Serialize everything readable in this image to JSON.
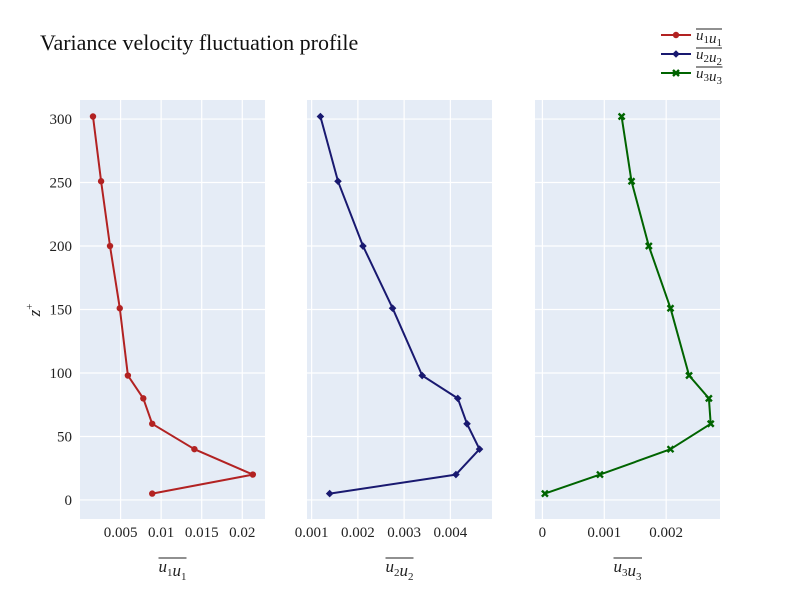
{
  "chart_data": {
    "title": "Variance velocity fluctuation profile",
    "type": "line",
    "shared_y": {
      "label": "z",
      "label_superscript": "+",
      "ylim": [
        -15,
        315
      ],
      "ticks": [
        0,
        50,
        100,
        150,
        200,
        250,
        300
      ]
    },
    "panels": [
      {
        "name": "u1u1",
        "xlabel": "u",
        "xlabel_subscripts": [
          "1",
          "1"
        ],
        "xlim": [
          0.0,
          0.0228
        ],
        "xticks": [
          0.005,
          0.01,
          0.015,
          0.02
        ],
        "xtick_labels": [
          "0.005",
          "0.01",
          "0.015",
          "0.02"
        ],
        "color": "#b22222",
        "marker": "circle",
        "series": {
          "name": "u1u1",
          "points": [
            {
              "x": 0.0089,
              "y": 5
            },
            {
              "x": 0.0213,
              "y": 20
            },
            {
              "x": 0.0141,
              "y": 40
            },
            {
              "x": 0.0089,
              "y": 60
            },
            {
              "x": 0.0078,
              "y": 80
            },
            {
              "x": 0.0059,
              "y": 98
            },
            {
              "x": 0.0049,
              "y": 151
            },
            {
              "x": 0.0037,
              "y": 200
            },
            {
              "x": 0.0026,
              "y": 251
            },
            {
              "x": 0.0016,
              "y": 302
            }
          ]
        }
      },
      {
        "name": "u2u2",
        "xlabel": "u",
        "xlabel_subscripts": [
          "2",
          "2"
        ],
        "xlim": [
          0.0009,
          0.0049
        ],
        "xticks": [
          0.001,
          0.002,
          0.003,
          0.004
        ],
        "xtick_labels": [
          "0.001",
          "0.002",
          "0.003",
          "0.004"
        ],
        "color": "#191970",
        "marker": "diamond",
        "series": {
          "name": "u2u2",
          "points": [
            {
              "x": 0.00139,
              "y": 5
            },
            {
              "x": 0.00412,
              "y": 20
            },
            {
              "x": 0.00463,
              "y": 40
            },
            {
              "x": 0.00436,
              "y": 60
            },
            {
              "x": 0.00416,
              "y": 80
            },
            {
              "x": 0.00339,
              "y": 98
            },
            {
              "x": 0.00275,
              "y": 151
            },
            {
              "x": 0.00211,
              "y": 200
            },
            {
              "x": 0.00157,
              "y": 251
            },
            {
              "x": 0.00119,
              "y": 302
            }
          ]
        }
      },
      {
        "name": "u3u3",
        "xlabel": "u",
        "xlabel_subscripts": [
          "3",
          "3"
        ],
        "xlim": [
          -0.00012,
          0.00287
        ],
        "xticks": [
          0,
          0.001,
          0.002
        ],
        "xtick_labels": [
          "0",
          "0.001",
          "0.002"
        ],
        "color": "#006400",
        "marker": "x",
        "series": {
          "name": "u3u3",
          "points": [
            {
              "x": 4e-05,
              "y": 5
            },
            {
              "x": 0.00093,
              "y": 20
            },
            {
              "x": 0.00207,
              "y": 40
            },
            {
              "x": 0.00272,
              "y": 60
            },
            {
              "x": 0.00269,
              "y": 80
            },
            {
              "x": 0.00237,
              "y": 98
            },
            {
              "x": 0.00207,
              "y": 151
            },
            {
              "x": 0.00172,
              "y": 200
            },
            {
              "x": 0.00144,
              "y": 251
            },
            {
              "x": 0.00128,
              "y": 302
            }
          ]
        }
      }
    ],
    "legend": {
      "placement": "top-right",
      "entries": [
        {
          "base": "u",
          "subscripts": [
            "1",
            "1"
          ],
          "color": "#b22222",
          "marker": "circle"
        },
        {
          "base": "u",
          "subscripts": [
            "2",
            "2"
          ],
          "color": "#191970",
          "marker": "diamond"
        },
        {
          "base": "u",
          "subscripts": [
            "3",
            "3"
          ],
          "color": "#006400",
          "marker": "x"
        }
      ]
    },
    "grid": true,
    "plot_background": "#e5ecf6"
  }
}
